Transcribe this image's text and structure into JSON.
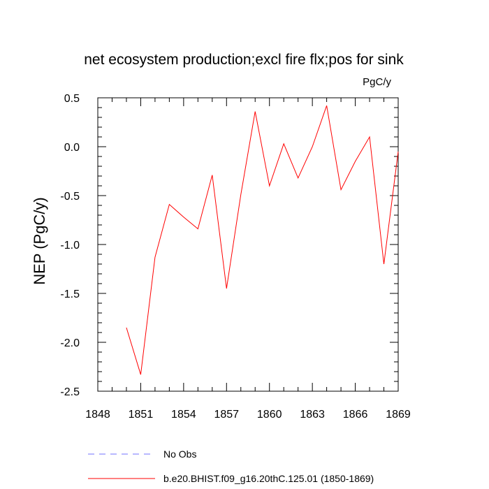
{
  "chart_data": {
    "type": "line",
    "title": "net ecosystem production;excl fire flx;pos for sink",
    "units_label": "PgC/y",
    "xlabel": "",
    "ylabel": "NEP  (PgC/y)",
    "xlim": [
      1848,
      1869
    ],
    "ylim": [
      -2.5,
      0.5
    ],
    "x_ticks": [
      1848,
      1851,
      1854,
      1857,
      1860,
      1863,
      1866,
      1869
    ],
    "x_tick_labels": [
      "1848",
      "1851",
      "1854",
      "1857",
      "1860",
      "1863",
      "1866",
      "1869"
    ],
    "y_ticks": [
      0.5,
      0.0,
      -0.5,
      -1.0,
      -1.5,
      -2.0,
      -2.5
    ],
    "y_tick_labels": [
      "0.5",
      "0.0",
      "-0.5",
      "-1.0",
      "-1.5",
      "-2.0",
      "-2.5"
    ],
    "series": [
      {
        "name": "b.e20.BHIST.f09_g16.20thC.125.01 (1850-1869)",
        "color": "#ff0000",
        "style": "solid",
        "x": [
          1850,
          1851,
          1852,
          1853,
          1854,
          1855,
          1856,
          1857,
          1858,
          1859,
          1860,
          1861,
          1862,
          1863,
          1864,
          1865,
          1866,
          1867,
          1868,
          1869
        ],
        "values": [
          -1.85,
          -2.33,
          -1.13,
          -0.59,
          -0.72,
          -0.84,
          -0.29,
          -1.45,
          -0.49,
          0.36,
          -0.4,
          0.03,
          -0.32,
          0.0,
          0.42,
          -0.44,
          -0.15,
          0.1,
          -1.2,
          -0.05
        ]
      }
    ],
    "legend": [
      {
        "label": "No Obs",
        "color": "#7070ff",
        "style": "dashed"
      },
      {
        "label": "b.e20.BHIST.f09_g16.20thC.125.01 (1850-1869)",
        "color": "#ff0000",
        "style": "solid"
      }
    ],
    "legend_position": "bottom"
  }
}
